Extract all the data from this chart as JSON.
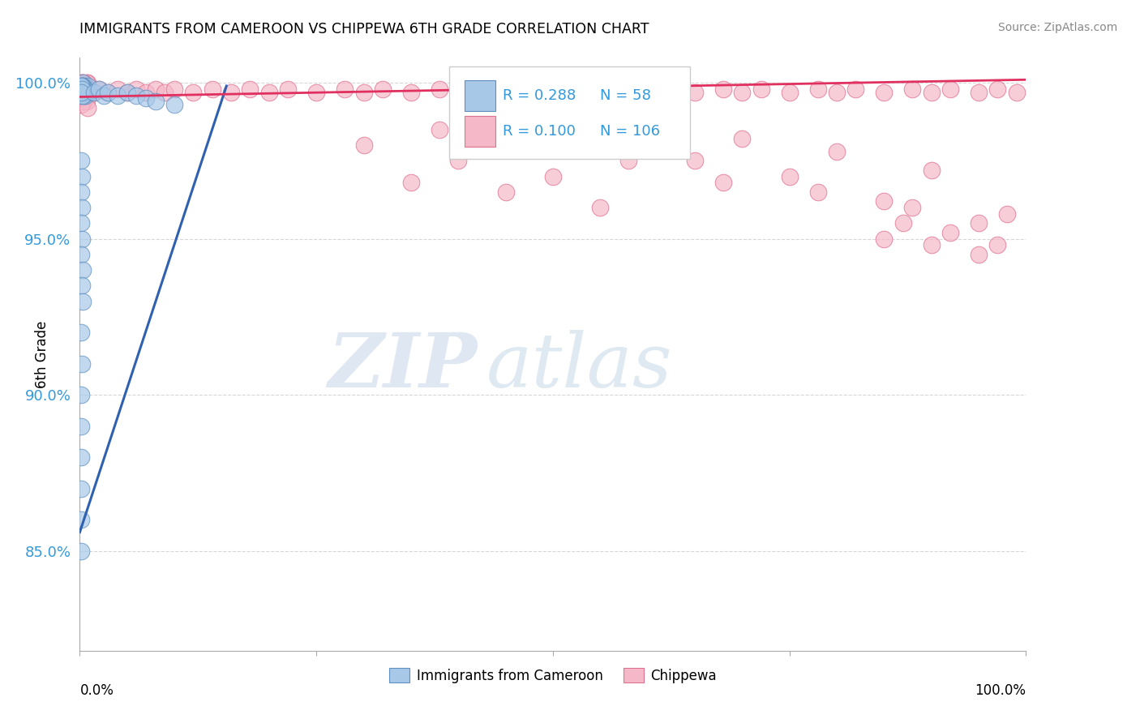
{
  "title": "IMMIGRANTS FROM CAMEROON VS CHIPPEWA 6TH GRADE CORRELATION CHART",
  "source": "Source: ZipAtlas.com",
  "ylabel": "6th Grade",
  "xlim": [
    0.0,
    1.0
  ],
  "ylim": [
    0.818,
    1.008
  ],
  "yticks": [
    0.85,
    0.9,
    0.95,
    1.0
  ],
  "ytick_labels": [
    "85.0%",
    "90.0%",
    "95.0%",
    "100.0%"
  ],
  "r_blue": "0.288",
  "n_blue": "58",
  "r_pink": "0.100",
  "n_pink": "106",
  "blue_color": "#A8C8E8",
  "pink_color": "#F5B8C8",
  "blue_edge": "#6090C0",
  "pink_edge": "#E07090",
  "trendline_blue": "#3060B0",
  "trendline_pink": "#E03060",
  "legend_label_blue": "Immigrants from Cameroon",
  "legend_label_pink": "Chippewa",
  "watermark_zip": "ZIP",
  "watermark_atlas": "atlas",
  "blue_scatter_x": [
    0.005,
    0.008,
    0.003,
    0.006,
    0.004,
    0.007,
    0.01,
    0.005,
    0.003,
    0.008,
    0.002,
    0.006,
    0.004,
    0.009,
    0.003,
    0.005,
    0.007,
    0.002,
    0.004,
    0.006,
    0.001,
    0.003,
    0.002,
    0.001,
    0.004,
    0.002,
    0.003,
    0.001,
    0.002,
    0.001,
    0.015,
    0.02,
    0.025,
    0.03,
    0.04,
    0.05,
    0.06,
    0.07,
    0.08,
    0.1,
    0.001,
    0.002,
    0.001,
    0.002,
    0.001,
    0.002,
    0.001,
    0.003,
    0.002,
    0.003,
    0.001,
    0.002,
    0.001,
    0.001,
    0.001,
    0.001,
    0.001,
    0.001
  ],
  "blue_scatter_y": [
    0.999,
    0.998,
    1.0,
    0.997,
    0.999,
    0.998,
    0.997,
    0.996,
    0.998,
    0.999,
    0.997,
    0.996,
    0.998,
    0.997,
    0.999,
    0.998,
    0.997,
    0.999,
    0.997,
    0.998,
    0.997,
    0.998,
    0.996,
    0.998,
    0.997,
    0.999,
    0.996,
    0.999,
    0.998,
    0.997,
    0.997,
    0.998,
    0.996,
    0.997,
    0.996,
    0.997,
    0.996,
    0.995,
    0.994,
    0.993,
    0.975,
    0.97,
    0.965,
    0.96,
    0.955,
    0.95,
    0.945,
    0.94,
    0.935,
    0.93,
    0.92,
    0.91,
    0.9,
    0.89,
    0.88,
    0.87,
    0.86,
    0.85
  ],
  "pink_scatter_x": [
    0.005,
    0.01,
    0.015,
    0.02,
    0.03,
    0.04,
    0.05,
    0.06,
    0.07,
    0.08,
    0.09,
    0.1,
    0.12,
    0.14,
    0.16,
    0.18,
    0.2,
    0.22,
    0.25,
    0.28,
    0.3,
    0.32,
    0.35,
    0.38,
    0.4,
    0.42,
    0.45,
    0.48,
    0.5,
    0.52,
    0.55,
    0.58,
    0.6,
    0.62,
    0.65,
    0.68,
    0.7,
    0.72,
    0.75,
    0.78,
    0.8,
    0.82,
    0.85,
    0.88,
    0.9,
    0.92,
    0.95,
    0.97,
    0.99,
    0.003,
    0.006,
    0.002,
    0.004,
    0.008,
    0.001,
    0.005,
    0.007,
    0.003,
    0.004,
    0.002,
    0.006,
    0.001,
    0.005,
    0.003,
    0.007,
    0.004,
    0.002,
    0.006,
    0.003,
    0.008,
    0.004,
    0.005,
    0.002,
    0.006,
    0.003,
    0.007,
    0.004,
    0.001,
    0.008,
    0.3,
    0.4,
    0.5,
    0.6,
    0.7,
    0.8,
    0.9,
    0.35,
    0.45,
    0.55,
    0.65,
    0.75,
    0.85,
    0.95,
    0.38,
    0.48,
    0.58,
    0.68,
    0.78,
    0.88,
    0.98,
    0.85,
    0.9,
    0.95,
    0.87,
    0.92,
    0.97
  ],
  "pink_scatter_y": [
    0.999,
    0.998,
    0.997,
    0.998,
    0.997,
    0.998,
    0.997,
    0.998,
    0.997,
    0.998,
    0.997,
    0.998,
    0.997,
    0.998,
    0.997,
    0.998,
    0.997,
    0.998,
    0.997,
    0.998,
    0.997,
    0.998,
    0.997,
    0.998,
    0.997,
    0.998,
    0.997,
    0.998,
    0.997,
    0.998,
    0.997,
    0.998,
    0.997,
    0.998,
    0.997,
    0.998,
    0.997,
    0.998,
    0.997,
    0.998,
    0.997,
    0.998,
    0.997,
    0.998,
    0.997,
    0.998,
    0.997,
    0.998,
    0.997,
    1.0,
    0.999,
    1.0,
    0.999,
    1.0,
    1.0,
    0.999,
    1.0,
    0.999,
    1.0,
    0.999,
    0.999,
    0.999,
    0.998,
    0.998,
    0.998,
    0.998,
    0.997,
    0.997,
    0.997,
    0.996,
    0.996,
    0.996,
    0.995,
    0.995,
    0.995,
    0.994,
    0.994,
    0.993,
    0.992,
    0.98,
    0.975,
    0.97,
    0.985,
    0.982,
    0.978,
    0.972,
    0.968,
    0.965,
    0.96,
    0.975,
    0.97,
    0.962,
    0.955,
    0.985,
    0.98,
    0.975,
    0.968,
    0.965,
    0.96,
    0.958,
    0.95,
    0.948,
    0.945,
    0.955,
    0.952,
    0.948
  ],
  "blue_trend_x0": 0.0,
  "blue_trend_y0": 0.856,
  "blue_trend_x1": 0.155,
  "blue_trend_y1": 0.999,
  "pink_trend_x0": 0.0,
  "pink_trend_y0": 0.9955,
  "pink_trend_x1": 1.0,
  "pink_trend_y1": 1.001
}
